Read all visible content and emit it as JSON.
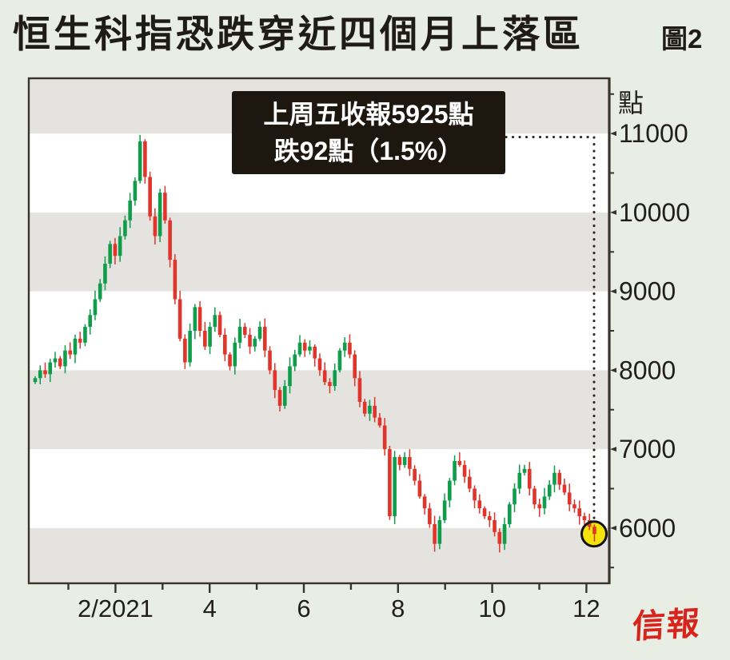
{
  "title": "恒生科指恐跌穿近四個月上落區",
  "figure_label": "圖2",
  "logo_text": "信報",
  "annotation": {
    "line1": "上周五收報5925點",
    "line2": "跌92點（1.5%）"
  },
  "y_axis": {
    "unit": "點",
    "ticks": [
      11000,
      10000,
      9000,
      8000,
      7000,
      6000
    ],
    "minor_ticks": [
      11500,
      10500,
      9500,
      8500,
      7500,
      6500,
      5500
    ],
    "min": 5300,
    "max": 11700
  },
  "x_axis": {
    "labels": [
      {
        "text": "2/2021",
        "month": 2
      },
      {
        "text": "4",
        "month": 4
      },
      {
        "text": "6",
        "month": 6
      },
      {
        "text": "8",
        "month": 8
      },
      {
        "text": "10",
        "month": 10
      },
      {
        "text": "12",
        "month": 12
      }
    ],
    "tick_months": [
      1,
      2,
      3,
      4,
      5,
      6,
      7,
      8,
      9,
      10,
      11,
      12
    ]
  },
  "chart_data": {
    "type": "candlestick",
    "title": "恒生科指恐跌穿近四個月上落區",
    "unit": "點",
    "x_range": "12/2020 - 12/2021",
    "ylim": [
      5300,
      11700
    ],
    "open_first": 7850,
    "closes": [
      7900,
      8000,
      7950,
      8100,
      8150,
      8050,
      8250,
      8200,
      8400,
      8350,
      8550,
      8700,
      8900,
      9100,
      9350,
      9600,
      9450,
      9700,
      9900,
      10150,
      10400,
      10900,
      10450,
      9950,
      9700,
      10250,
      9900,
      9400,
      8900,
      8400,
      8100,
      8500,
      8800,
      8500,
      8300,
      8550,
      8700,
      8450,
      8200,
      8050,
      8350,
      8550,
      8450,
      8300,
      8400,
      8550,
      8250,
      8000,
      7750,
      7550,
      7800,
      8050,
      8200,
      8350,
      8250,
      8300,
      8150,
      8000,
      7850,
      7800,
      8000,
      8250,
      8350,
      8200,
      7900,
      7600,
      7450,
      7550,
      7400,
      7300,
      7000,
      6150,
      6900,
      6800,
      6900,
      6750,
      6600,
      6400,
      6250,
      6050,
      5800,
      6100,
      6350,
      6600,
      6850,
      6800,
      6650,
      6500,
      6350,
      6250,
      6150,
      6100,
      5950,
      5800,
      6050,
      6300,
      6500,
      6700,
      6750,
      6500,
      6300,
      6250,
      6400,
      6550,
      6700,
      6550,
      6450,
      6300,
      6250,
      6150,
      6100,
      6017,
      5925
    ],
    "last_point": {
      "close": 5925,
      "change": -92,
      "change_pct": "1.5%"
    },
    "bands": [
      [
        11700,
        11000
      ],
      [
        10000,
        9000
      ],
      [
        8000,
        7000
      ],
      [
        6000,
        5300
      ]
    ],
    "colors": {
      "up": "#0f9c4b",
      "down": "#e0352b",
      "band": "#e4e3e0",
      "plot_bg": "#ffffff",
      "frame": "#38342d",
      "highlight_fill": "#f2e30d",
      "highlight_ring": "#151310",
      "leader_dots": "#2b2823"
    },
    "legend": "none",
    "grid": "alternating horizontal bands every 1000 points"
  },
  "colors": {
    "page_bg": "#e9eee5",
    "callout_bg": "#1d1710",
    "callout_text": "#ffffff",
    "logo_red": "#d7241c",
    "text": "#221f19"
  }
}
